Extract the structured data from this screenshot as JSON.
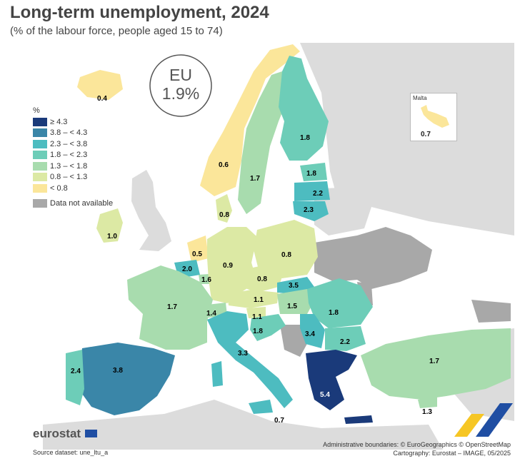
{
  "title": "Long-term unemployment, 2024",
  "subtitle": "(% of the labour force, people aged 15 to 74)",
  "eu_badge": {
    "label": "EU",
    "value": "1.9%"
  },
  "legend": {
    "unit": "%",
    "classes": [
      {
        "label": "≥ 4.3",
        "color": "#1a3a7a"
      },
      {
        "label": "3.8 – < 4.3",
        "color": "#3a86a8"
      },
      {
        "label": "2.3 – < 3.8",
        "color": "#4dbcc0"
      },
      {
        "label": "1.8 – < 2.3",
        "color": "#6dcdb8"
      },
      {
        "label": "1.3 – < 1.8",
        "color": "#a8dcae"
      },
      {
        "label": "0.8 – < 1.3",
        "color": "#dce9a4"
      },
      {
        "label": "< 0.8",
        "color": "#fbe69a"
      }
    ],
    "na": {
      "label": "Data not available",
      "color": "#a8a8a8"
    }
  },
  "countries": [
    {
      "name": "Iceland",
      "value": "0.4"
    },
    {
      "name": "Norway",
      "value": "0.6"
    },
    {
      "name": "Sweden",
      "value": "1.7"
    },
    {
      "name": "Finland",
      "value": "1.8"
    },
    {
      "name": "Estonia",
      "value": "1.8"
    },
    {
      "name": "Latvia",
      "value": "2.2"
    },
    {
      "name": "Lithuania",
      "value": "2.3"
    },
    {
      "name": "Denmark",
      "value": "0.8"
    },
    {
      "name": "Ireland",
      "value": "1.0"
    },
    {
      "name": "Netherlands",
      "value": "0.5"
    },
    {
      "name": "Belgium",
      "value": "2.0"
    },
    {
      "name": "Luxembourg",
      "value": "1.6"
    },
    {
      "name": "Germany",
      "value": "0.9"
    },
    {
      "name": "Poland",
      "value": "0.8"
    },
    {
      "name": "Czechia",
      "value": "0.8"
    },
    {
      "name": "Slovakia",
      "value": "3.5"
    },
    {
      "name": "Austria",
      "value": "1.1"
    },
    {
      "name": "Hungary",
      "value": "1.5"
    },
    {
      "name": "Romania",
      "value": "1.8"
    },
    {
      "name": "France",
      "value": "1.7"
    },
    {
      "name": "Switzerland",
      "value": "1.4"
    },
    {
      "name": "Slovenia",
      "value": "1.1"
    },
    {
      "name": "Croatia",
      "value": "1.8"
    },
    {
      "name": "Serbia",
      "value": "3.4"
    },
    {
      "name": "Bulgaria",
      "value": "2.2"
    },
    {
      "name": "Italy",
      "value": "3.3"
    },
    {
      "name": "Spain",
      "value": "3.8"
    },
    {
      "name": "Portugal",
      "value": "2.4"
    },
    {
      "name": "Greece",
      "value": "5.4"
    },
    {
      "name": "Türkiye",
      "value": "1.7"
    },
    {
      "name": "Cyprus",
      "value": "1.3"
    },
    {
      "name": "Malta",
      "value": "0.7"
    },
    {
      "name": "Sicily-label",
      "value": "0.7"
    }
  ],
  "malta_inset": {
    "title": "Malta",
    "value": "0.7"
  },
  "branding": {
    "logo": "eurostat"
  },
  "source": "Source dataset: une_ltu_a",
  "credits": {
    "line1": "Administrative boundaries: © EuroGeographics © OpenStreetMap",
    "line2": "Cartography: Eurostat – IMAGE, 05/2025"
  },
  "colors": {
    "sea": "#ffffff",
    "land_other": "#dcdcdc",
    "na": "#a8a8a8",
    "border": "#ffffff"
  }
}
